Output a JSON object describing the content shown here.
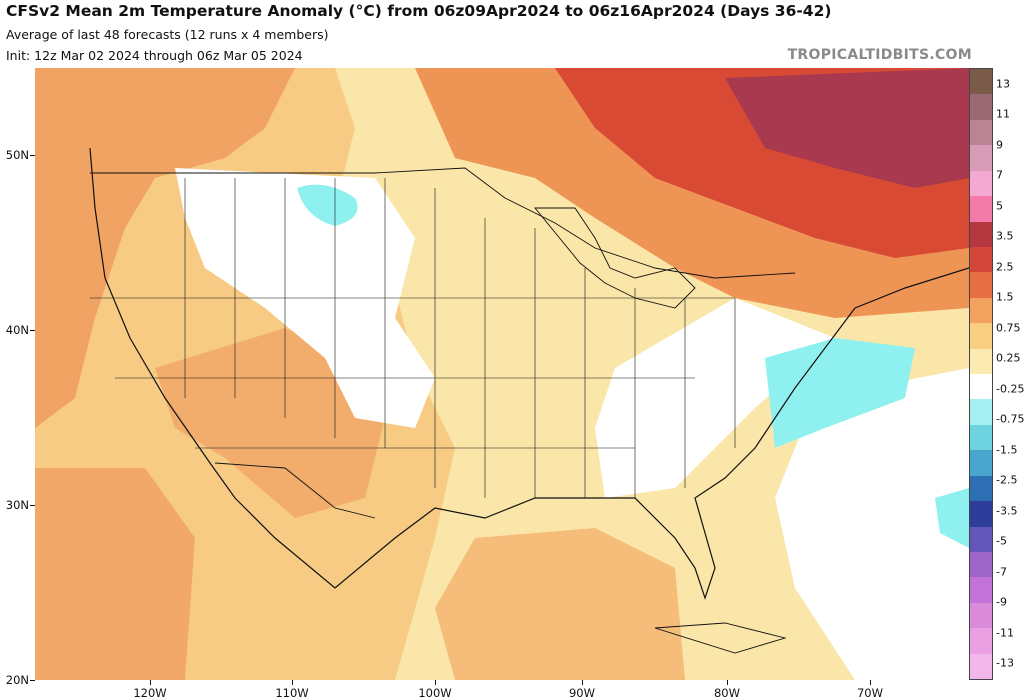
{
  "header": {
    "title": "CFSv2 Mean 2m Temperature Anomaly (°C) from 06z09Apr2024 to 06z16Apr2024 (Days 36-42)",
    "subtitle1": "Average of last 48 forecasts (12 runs x 4 members)",
    "subtitle2": "Init: 12z Mar 02 2024 through 06z Mar 05 2024",
    "credit": "TROPICALTIDBITS.COM"
  },
  "axes": {
    "latitude_labels": [
      "50N",
      "40N",
      "30N",
      "20N"
    ],
    "longitude_labels": [
      "120W",
      "110W",
      "100W",
      "90W",
      "80W",
      "70W"
    ]
  },
  "colorbar": {
    "labels": [
      "13",
      "11",
      "9",
      "7",
      "5",
      "3.5",
      "2.5",
      "1.5",
      "0.75",
      "0.25",
      "-0.25",
      "-0.75",
      "-1.5",
      "-2.5",
      "-3.5",
      "-5",
      "-7",
      "-9",
      "-11",
      "-13"
    ],
    "colors": [
      "#7a5a48",
      "#9a6a74",
      "#b98595",
      "#d99cb8",
      "#f3a9d1",
      "#f27ba7",
      "#b5373f",
      "#d2473a",
      "#e86e43",
      "#f2a25e",
      "#f9cd82",
      "#fbeab1",
      "#ffffff",
      "#a7f0f2",
      "#6fd3df",
      "#4aa6cc",
      "#2e6fb4",
      "#2e3c9a",
      "#6257b8",
      "#9c67c9",
      "#c173d8",
      "#d98ad8",
      "#ea9fe0",
      "#f2b7ea"
    ],
    "anomaly_colors": {
      "strong_positive": "#a8394f",
      "positive": "#d94a34",
      "moderate": "#ef9c5a",
      "weak": "#f7c982",
      "near_zero": "#ffffff",
      "negative": "#8ff0f0"
    }
  }
}
